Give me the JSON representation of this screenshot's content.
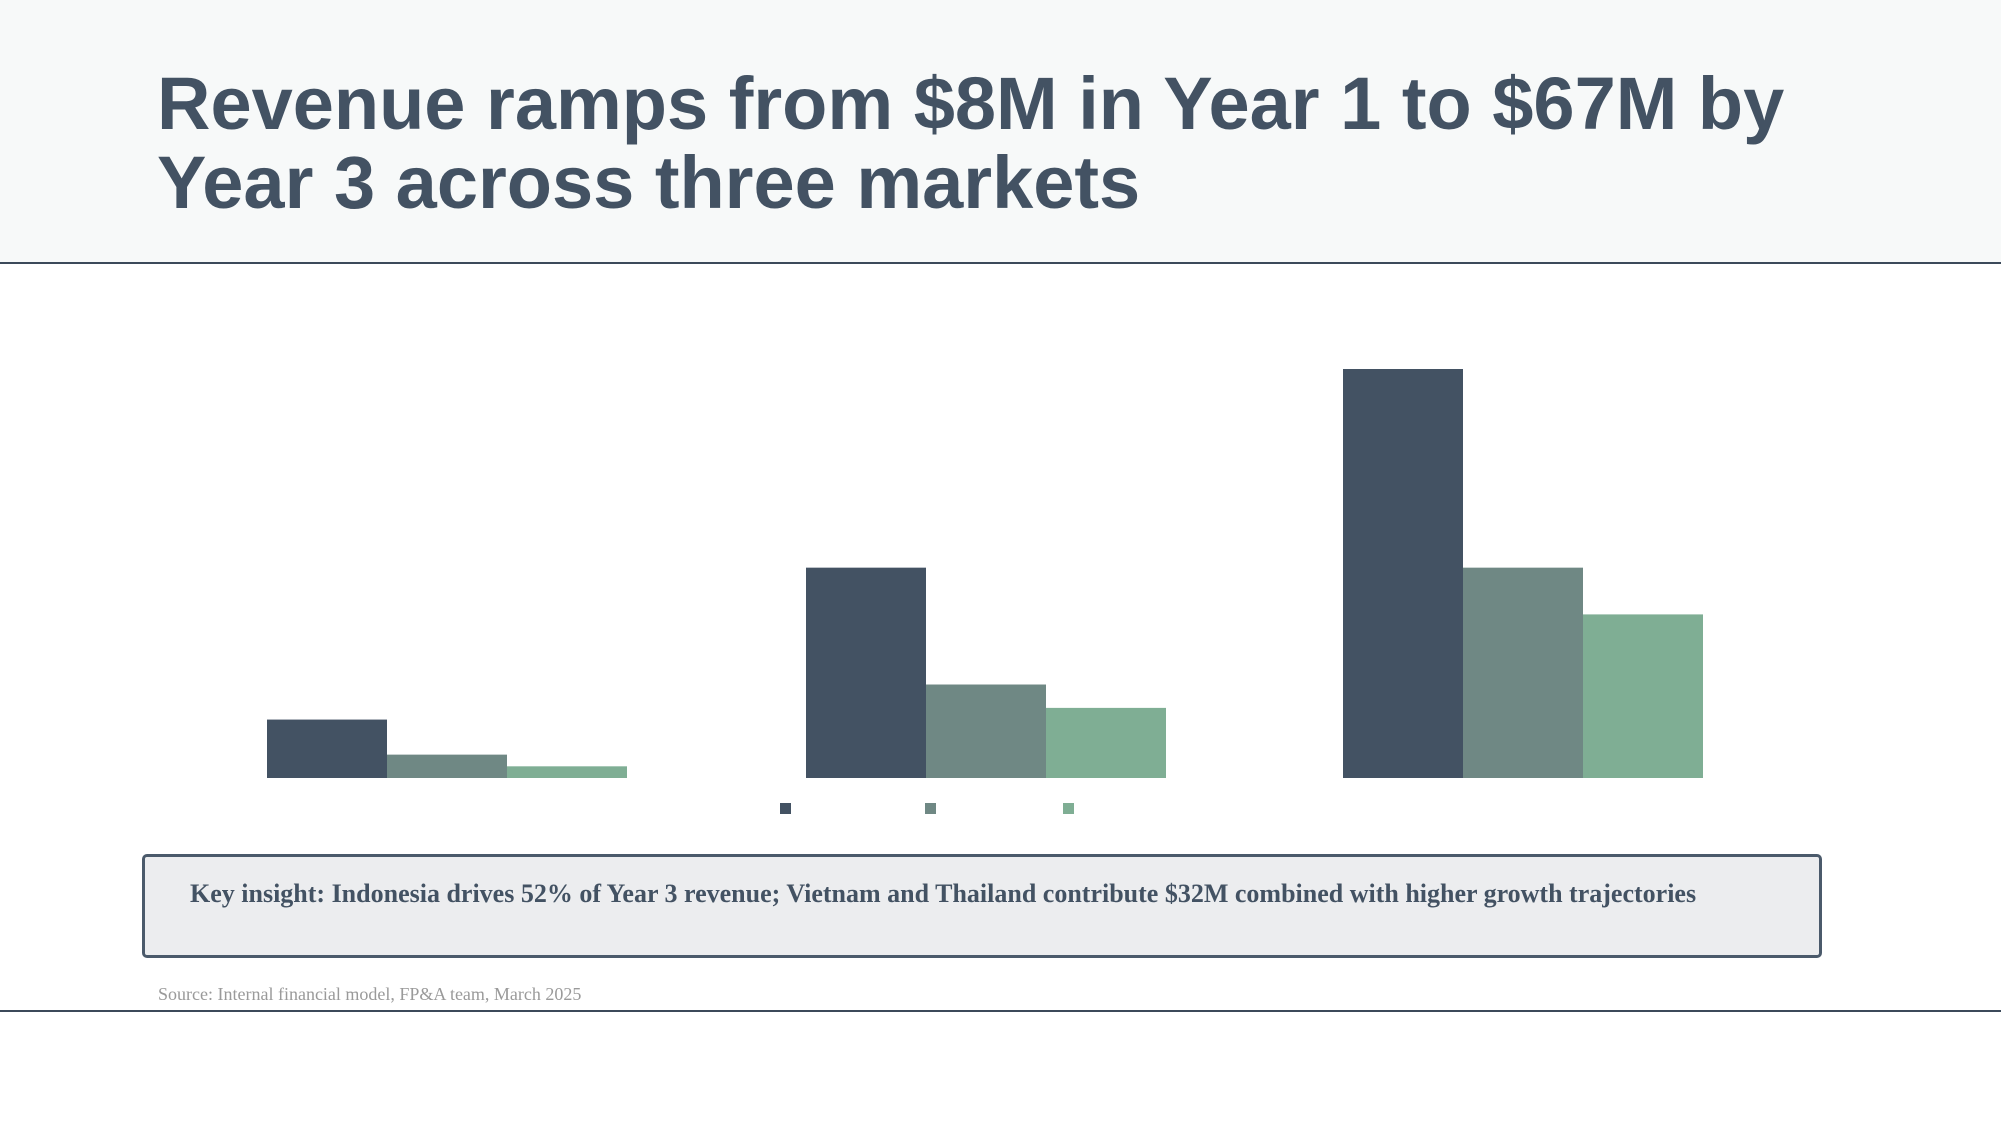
{
  "header": {
    "title": "Revenue ramps from $8M in Year 1 to $67M by Year 3 across three markets"
  },
  "chart_data": {
    "type": "bar",
    "title": "",
    "xlabel": "",
    "ylabel": "",
    "unit": "$M",
    "ylim": [
      0,
      35
    ],
    "grid": false,
    "legend": "bottom-center",
    "categories": [
      "",
      "",
      ""
    ],
    "series": [
      {
        "values": [
          5,
          18,
          35
        ],
        "color": "#435263"
      },
      {
        "values": [
          2,
          8,
          18
        ],
        "color": "#6f8884"
      },
      {
        "values": [
          1,
          6,
          14
        ],
        "color": "#7fae94"
      }
    ]
  },
  "insight": {
    "text": "Key insight: Indonesia drives 52% of Year 3 revenue; Vietnam and Thailand contribute $32M combined with higher growth trajectories"
  },
  "footer": {
    "source": "Source: Internal financial model, FP&A team, March 2025"
  }
}
